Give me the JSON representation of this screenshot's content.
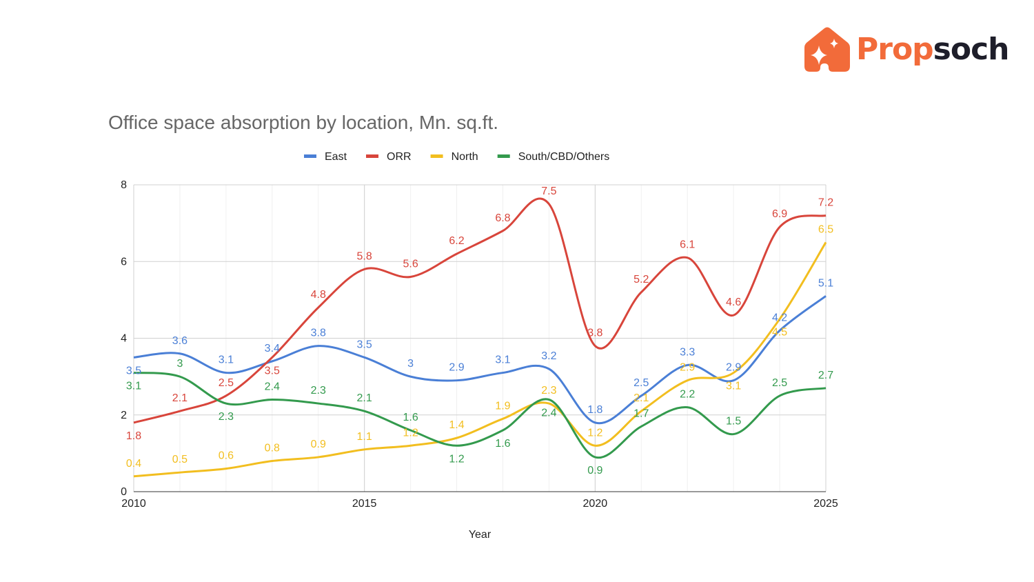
{
  "logo": {
    "part1": "Prop",
    "part2": "soch",
    "brand_color": "#f26b3a"
  },
  "chart_data": {
    "type": "line",
    "title": "Office space absorption by location, Mn. sq.ft.",
    "xlabel": "Year",
    "ylabel": "",
    "x": [
      2010,
      2011,
      2012,
      2013,
      2014,
      2015,
      2016,
      2017,
      2018,
      2019,
      2020,
      2021,
      2022,
      2023,
      2024,
      2025
    ],
    "xticks": [
      "2010",
      "2015",
      "2020",
      "2025"
    ],
    "yticks": [
      "0",
      "2",
      "4",
      "6",
      "8"
    ],
    "ylim": [
      0,
      8
    ],
    "grid": true,
    "smooth": true,
    "legend_position": "top",
    "series": [
      {
        "name": "East",
        "color": "#4a7fd6",
        "values": [
          3.5,
          3.6,
          3.1,
          3.4,
          3.8,
          3.5,
          3,
          2.9,
          3.1,
          3.2,
          1.8,
          2.5,
          3.3,
          2.9,
          4.2,
          5.1
        ]
      },
      {
        "name": "ORR",
        "color": "#d8453b",
        "values": [
          1.8,
          2.1,
          2.5,
          3.5,
          4.8,
          5.8,
          5.6,
          6.2,
          6.8,
          7.5,
          3.8,
          5.2,
          6.1,
          4.6,
          6.9,
          7.2
        ]
      },
      {
        "name": "North",
        "color": "#f2be1f",
        "values": [
          0.4,
          0.5,
          0.6,
          0.8,
          0.9,
          1.1,
          1.2,
          1.4,
          1.9,
          2.3,
          1.2,
          2.1,
          2.9,
          3.1,
          4.5,
          6.5
        ]
      },
      {
        "name": "South/CBD/Others",
        "color": "#339a4d",
        "values": [
          3.1,
          3,
          2.3,
          2.4,
          2.3,
          2.1,
          1.6,
          1.2,
          1.6,
          2.4,
          0.9,
          1.7,
          2.2,
          1.5,
          2.5,
          2.7
        ]
      }
    ]
  }
}
